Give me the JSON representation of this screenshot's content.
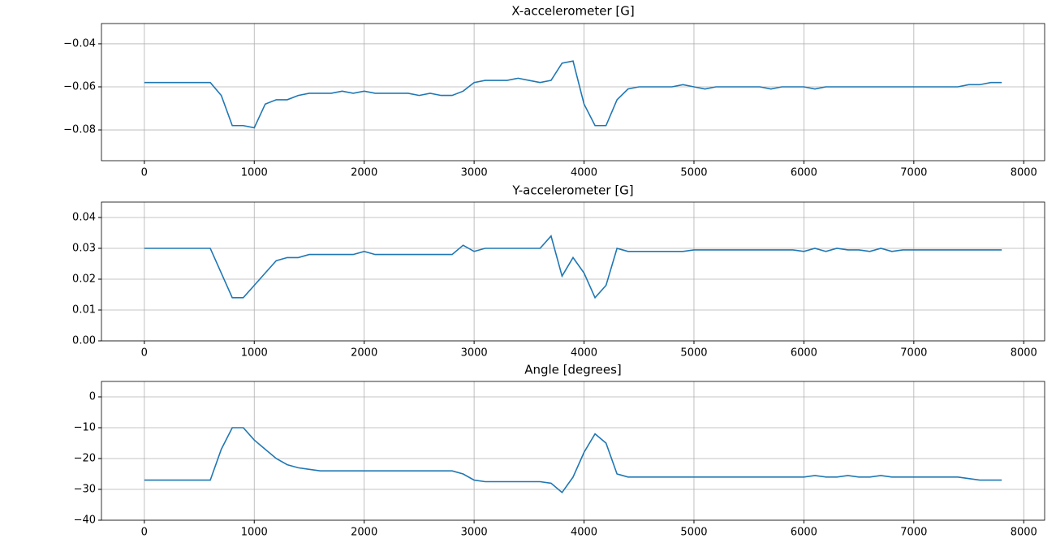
{
  "chart_data": [
    {
      "type": "line",
      "title": "X-accelerometer [G]",
      "x": [
        0,
        100,
        200,
        300,
        400,
        500,
        600,
        700,
        800,
        900,
        1000,
        1100,
        1200,
        1300,
        1400,
        1500,
        1600,
        1700,
        1800,
        1900,
        2000,
        2100,
        2200,
        2300,
        2400,
        2500,
        2600,
        2700,
        2800,
        2900,
        3000,
        3100,
        3200,
        3300,
        3400,
        3500,
        3600,
        3700,
        3800,
        3900,
        4000,
        4100,
        4200,
        4300,
        4400,
        4500,
        4600,
        4700,
        4800,
        4900,
        5000,
        5100,
        5200,
        5300,
        5400,
        5500,
        5600,
        5700,
        5800,
        5900,
        6000,
        6100,
        6200,
        6300,
        6400,
        6500,
        6600,
        6700,
        6800,
        6900,
        7000,
        7100,
        7200,
        7300,
        7400,
        7500,
        7600,
        7700,
        7800
      ],
      "series": [
        {
          "color": "#1f77b4",
          "values": [
            -0.058,
            -0.058,
            -0.058,
            -0.058,
            -0.058,
            -0.058,
            -0.058,
            -0.064,
            -0.078,
            -0.078,
            -0.079,
            -0.068,
            -0.066,
            -0.066,
            -0.064,
            -0.063,
            -0.063,
            -0.063,
            -0.062,
            -0.063,
            -0.062,
            -0.063,
            -0.063,
            -0.063,
            -0.063,
            -0.064,
            -0.063,
            -0.064,
            -0.064,
            -0.062,
            -0.058,
            -0.057,
            -0.057,
            -0.057,
            -0.056,
            -0.057,
            -0.058,
            -0.057,
            -0.049,
            -0.048,
            -0.068,
            -0.078,
            -0.078,
            -0.066,
            -0.061,
            -0.06,
            -0.06,
            -0.06,
            -0.06,
            -0.059,
            -0.06,
            -0.061,
            -0.06,
            -0.06,
            -0.06,
            -0.06,
            -0.06,
            -0.061,
            -0.06,
            -0.06,
            -0.06,
            -0.061,
            -0.06,
            -0.06,
            -0.06,
            -0.06,
            -0.06,
            -0.06,
            -0.06,
            -0.06,
            -0.06,
            -0.06,
            -0.06,
            -0.06,
            -0.06,
            -0.059,
            -0.059,
            -0.058,
            -0.058
          ]
        }
      ],
      "xlim": [
        -390,
        8190
      ],
      "xticks": [
        0,
        1000,
        2000,
        3000,
        4000,
        5000,
        6000,
        7000,
        8000
      ],
      "ylim": [
        -0.0943,
        -0.0306
      ],
      "yticks": [
        {
          "value": -0.08,
          "label": "−0.08"
        },
        {
          "value": -0.06,
          "label": "−0.06"
        },
        {
          "value": -0.04,
          "label": "−0.04"
        }
      ],
      "grid": true
    },
    {
      "type": "line",
      "title": "Y-accelerometer [G]",
      "x": [
        0,
        100,
        200,
        300,
        400,
        500,
        600,
        700,
        800,
        900,
        1000,
        1100,
        1200,
        1300,
        1400,
        1500,
        1600,
        1700,
        1800,
        1900,
        2000,
        2100,
        2200,
        2300,
        2400,
        2500,
        2600,
        2700,
        2800,
        2900,
        3000,
        3100,
        3200,
        3300,
        3400,
        3500,
        3600,
        3700,
        3800,
        3900,
        4000,
        4100,
        4200,
        4300,
        4400,
        4500,
        4600,
        4700,
        4800,
        4900,
        5000,
        5100,
        5200,
        5300,
        5400,
        5500,
        5600,
        5700,
        5800,
        5900,
        6000,
        6100,
        6200,
        6300,
        6400,
        6500,
        6600,
        6700,
        6800,
        6900,
        7000,
        7100,
        7200,
        7300,
        7400,
        7500,
        7600,
        7700,
        7800
      ],
      "series": [
        {
          "color": "#1f77b4",
          "values": [
            0.03,
            0.03,
            0.03,
            0.03,
            0.03,
            0.03,
            0.03,
            0.022,
            0.014,
            0.014,
            0.018,
            0.022,
            0.026,
            0.027,
            0.027,
            0.028,
            0.028,
            0.028,
            0.028,
            0.028,
            0.029,
            0.028,
            0.028,
            0.028,
            0.028,
            0.028,
            0.028,
            0.028,
            0.028,
            0.031,
            0.029,
            0.03,
            0.03,
            0.03,
            0.03,
            0.03,
            0.03,
            0.034,
            0.021,
            0.027,
            0.022,
            0.014,
            0.018,
            0.03,
            0.029,
            0.029,
            0.029,
            0.029,
            0.029,
            0.029,
            0.0295,
            0.0295,
            0.0295,
            0.0295,
            0.0295,
            0.0295,
            0.0295,
            0.0295,
            0.0295,
            0.0295,
            0.029,
            0.03,
            0.029,
            0.03,
            0.0295,
            0.0295,
            0.029,
            0.03,
            0.029,
            0.0295,
            0.0295,
            0.0295,
            0.0295,
            0.0295,
            0.0295,
            0.0295,
            0.0295,
            0.0295,
            0.0295
          ]
        }
      ],
      "xlim": [
        -390,
        8190
      ],
      "xticks": [
        0,
        1000,
        2000,
        3000,
        4000,
        5000,
        6000,
        7000,
        8000
      ],
      "ylim": [
        0,
        0.045
      ],
      "yticks": [
        {
          "value": 0,
          "label": "0.00"
        },
        {
          "value": 0.01,
          "label": "0.01"
        },
        {
          "value": 0.02,
          "label": "0.02"
        },
        {
          "value": 0.03,
          "label": "0.03"
        },
        {
          "value": 0.04,
          "label": "0.04"
        }
      ],
      "grid": true
    },
    {
      "type": "line",
      "title": "Angle [degrees]",
      "x": [
        0,
        100,
        200,
        300,
        400,
        500,
        600,
        700,
        800,
        900,
        1000,
        1100,
        1200,
        1300,
        1400,
        1500,
        1600,
        1700,
        1800,
        1900,
        2000,
        2100,
        2200,
        2300,
        2400,
        2500,
        2600,
        2700,
        2800,
        2900,
        3000,
        3100,
        3200,
        3300,
        3400,
        3500,
        3600,
        3700,
        3800,
        3900,
        4000,
        4100,
        4200,
        4300,
        4400,
        4500,
        4600,
        4700,
        4800,
        4900,
        5000,
        5100,
        5200,
        5300,
        5400,
        5500,
        5600,
        5700,
        5800,
        5900,
        6000,
        6100,
        6200,
        6300,
        6400,
        6500,
        6600,
        6700,
        6800,
        6900,
        7000,
        7100,
        7200,
        7300,
        7400,
        7500,
        7600,
        7700,
        7800
      ],
      "series": [
        {
          "color": "#1f77b4",
          "values": [
            -27,
            -27,
            -27,
            -27,
            -27,
            -27,
            -27,
            -17,
            -10,
            -10,
            -14,
            -17,
            -20,
            -22,
            -23,
            -23.5,
            -24,
            -24,
            -24,
            -24,
            -24,
            -24,
            -24,
            -24,
            -24,
            -24,
            -24,
            -24,
            -24,
            -25,
            -27,
            -27.5,
            -27.5,
            -27.5,
            -27.5,
            -27.5,
            -27.5,
            -28,
            -31,
            -26,
            -18,
            -12,
            -15,
            -25,
            -26,
            -26,
            -26,
            -26,
            -26,
            -26,
            -26,
            -26,
            -26,
            -26,
            -26,
            -26,
            -26,
            -26,
            -26,
            -26,
            -26,
            -25.5,
            -26,
            -26,
            -25.5,
            -26,
            -26,
            -25.5,
            -26,
            -26,
            -26,
            -26,
            -26,
            -26,
            -26,
            -26.5,
            -27,
            -27,
            -27
          ]
        }
      ],
      "xlim": [
        -390,
        8190
      ],
      "xticks": [
        0,
        1000,
        2000,
        3000,
        4000,
        5000,
        6000,
        7000,
        8000
      ],
      "ylim": [
        -40,
        5
      ],
      "yticks": [
        {
          "value": -40,
          "label": "−40"
        },
        {
          "value": -30,
          "label": "−30"
        },
        {
          "value": -20,
          "label": "−20"
        },
        {
          "value": -10,
          "label": "−10"
        },
        0
      ],
      "grid": true
    }
  ]
}
